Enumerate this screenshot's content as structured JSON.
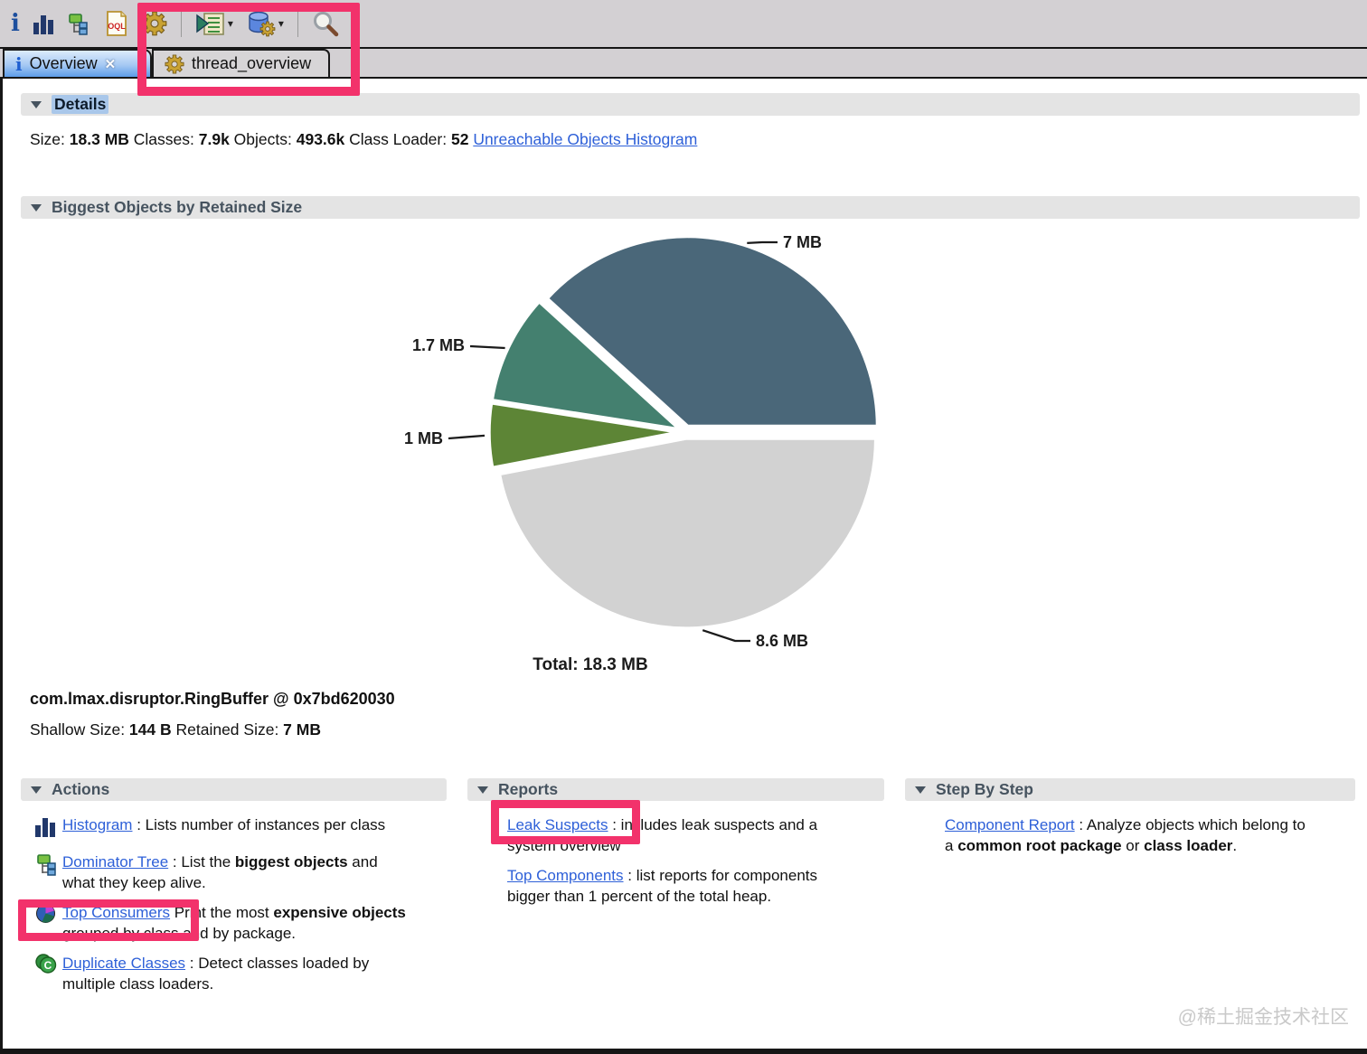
{
  "toolbar": {
    "caret_glyph": "▾",
    "buttons": [
      {
        "icon": "info-icon"
      },
      {
        "icon": "histogram-icon"
      },
      {
        "icon": "dominator-tree-icon"
      },
      {
        "icon": "oql-icon"
      },
      {
        "icon": "gear-icon"
      },
      {
        "sep": true
      },
      {
        "icon": "run-list-icon",
        "dropdown": true
      },
      {
        "icon": "db-gear-icon",
        "dropdown": true
      },
      {
        "sep": true
      },
      {
        "icon": "search-icon"
      }
    ],
    "icon_text": {
      "oql": "OQL",
      "dup_class": "C"
    }
  },
  "tabs": [
    {
      "label": "Overview",
      "icon": "info-icon",
      "close_glyph": "✕",
      "active": true
    },
    {
      "label": "thread_overview",
      "icon": "gear-icon-small",
      "active": false
    }
  ],
  "details": {
    "header": "Details",
    "parts": [
      {
        "t": "Size: "
      },
      {
        "t": "18.3 MB",
        "b": true
      },
      {
        "t": " Classes: "
      },
      {
        "t": "7.9k",
        "b": true
      },
      {
        "t": " Objects: "
      },
      {
        "t": "493.6k",
        "b": true
      },
      {
        "t": " Class Loader: "
      },
      {
        "t": "52",
        "b": true
      },
      {
        "t": " "
      },
      {
        "t": "Unreachable Objects Histogram",
        "link": true
      }
    ]
  },
  "biggest": {
    "header": "Biggest Objects by Retained Size"
  },
  "chart_data": {
    "type": "pie",
    "title": "Biggest Objects by Retained Size",
    "total_mb": 18.3,
    "total_label": "Total: 18.3 MB",
    "start_angle_deg": 0,
    "direction": "counterclockwise",
    "slices": [
      {
        "label": "7 MB",
        "value_mb": 7,
        "color": "#4a6779"
      },
      {
        "label": "1.7 MB",
        "value_mb": 1.7,
        "color": "#44806f"
      },
      {
        "label": "1 MB",
        "value_mb": 1,
        "color": "#5d8536"
      },
      {
        "label": "8.6 MB",
        "value_mb": 8.6,
        "color": "#d2d2d2"
      }
    ]
  },
  "selected_object": {
    "title": "com.lmax.disruptor.RingBuffer @ 0x7bd620030",
    "sizes_parts": [
      {
        "t": "Shallow Size: "
      },
      {
        "t": "144 B",
        "b": true
      },
      {
        "t": " Retained Size: "
      },
      {
        "t": "7 MB",
        "b": true
      }
    ]
  },
  "sections": {
    "actions": {
      "header": "Actions",
      "items": [
        {
          "icon": "histogram-icon",
          "link": "Histogram",
          "parts": [
            {
              "t": " : Lists number of instances per class"
            }
          ]
        },
        {
          "icon": "dominator-tree-icon",
          "link": "Dominator Tree",
          "parts": [
            {
              "t": " : List the "
            },
            {
              "t": "biggest objects",
              "b": true
            },
            {
              "t": " and what they keep alive."
            }
          ]
        },
        {
          "icon": "pie-mini-icon",
          "link": "Top Consumers",
          "parts": [
            {
              "t": " Print the most "
            },
            {
              "t": "expensive objects",
              "b": true
            },
            {
              "t": " grouped by class and by package."
            }
          ]
        },
        {
          "icon": "dup-class-icon",
          "link": "Duplicate Classes",
          "parts": [
            {
              "t": " : Detect classes loaded by multiple class loaders."
            }
          ]
        }
      ]
    },
    "reports": {
      "header": "Reports",
      "items": [
        {
          "link": "Leak Suspects",
          "parts": [
            {
              "t": " : includes leak suspects and a system overview"
            }
          ]
        },
        {
          "link": "Top Components",
          "parts": [
            {
              "t": " : list reports for components bigger than 1 percent of the total heap."
            }
          ]
        }
      ]
    },
    "step": {
      "header": "Step By Step",
      "items": [
        {
          "link": "Component Report",
          "parts": [
            {
              "t": " : Analyze objects which belong to a "
            },
            {
              "t": "common root package",
              "b": true
            },
            {
              "t": " or "
            },
            {
              "t": "class loader",
              "b": true
            },
            {
              "t": "."
            }
          ]
        }
      ]
    }
  },
  "watermark": "@稀土掘金技术社区",
  "colors": {
    "highlight_pink": "#f2326b",
    "link_blue": "#2e60d8",
    "section_header_text": "#46535f",
    "toolbar_bg": "#d3d0d3",
    "selection_blue": "#a9c7ea"
  }
}
